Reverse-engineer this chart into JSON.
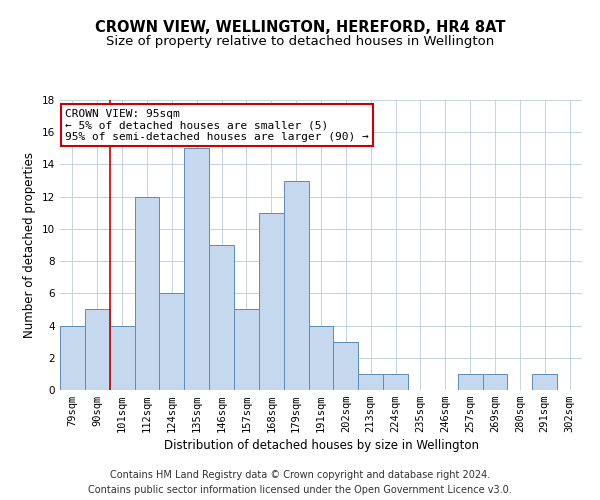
{
  "title": "CROWN VIEW, WELLINGTON, HEREFORD, HR4 8AT",
  "subtitle": "Size of property relative to detached houses in Wellington",
  "xlabel": "Distribution of detached houses by size in Wellington",
  "ylabel": "Number of detached properties",
  "categories": [
    "79sqm",
    "90sqm",
    "101sqm",
    "112sqm",
    "124sqm",
    "135sqm",
    "146sqm",
    "157sqm",
    "168sqm",
    "179sqm",
    "191sqm",
    "202sqm",
    "213sqm",
    "224sqm",
    "235sqm",
    "246sqm",
    "257sqm",
    "269sqm",
    "280sqm",
    "291sqm",
    "302sqm"
  ],
  "values": [
    4,
    5,
    4,
    12,
    6,
    15,
    9,
    5,
    11,
    13,
    4,
    3,
    1,
    1,
    0,
    0,
    1,
    1,
    0,
    1,
    0
  ],
  "bar_color": "#c5d8ed",
  "bar_edgecolor": "#5b8db8",
  "ylim": [
    0,
    18
  ],
  "yticks": [
    0,
    2,
    4,
    6,
    8,
    10,
    12,
    14,
    16,
    18
  ],
  "red_line_index": 1.5,
  "annotation_line1": "CROWN VIEW: 95sqm",
  "annotation_line2": "← 5% of detached houses are smaller (5)",
  "annotation_line3": "95% of semi-detached houses are larger (90) →",
  "annotation_box_color": "#ffffff",
  "annotation_box_edgecolor": "#cc0000",
  "footer_line1": "Contains HM Land Registry data © Crown copyright and database right 2024.",
  "footer_line2": "Contains public sector information licensed under the Open Government Licence v3.0.",
  "background_color": "#ffffff",
  "grid_color": "#bbccdd",
  "title_fontsize": 10.5,
  "subtitle_fontsize": 9.5,
  "ylabel_fontsize": 8.5,
  "xlabel_fontsize": 8.5,
  "tick_fontsize": 7.5,
  "annotation_fontsize": 8,
  "footer_fontsize": 7
}
